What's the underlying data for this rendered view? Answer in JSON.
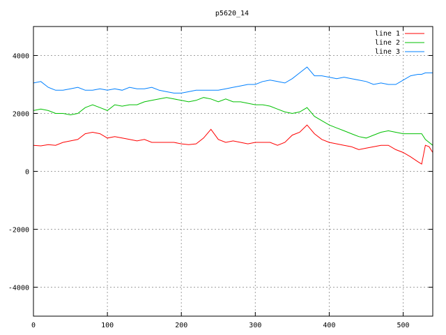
{
  "chart_data": {
    "type": "line",
    "title": "p5620_14",
    "xlabel": "",
    "ylabel": "",
    "xlim": [
      0,
      540
    ],
    "ylim": [
      -5000,
      5000
    ],
    "x_ticks": [
      0,
      100,
      200,
      300,
      400,
      500
    ],
    "y_ticks": [
      -4000,
      -2000,
      0,
      2000,
      4000
    ],
    "grid": true,
    "legend_position": "top-right",
    "x": [
      0,
      10,
      20,
      30,
      40,
      50,
      60,
      70,
      80,
      90,
      100,
      110,
      120,
      130,
      140,
      150,
      160,
      170,
      180,
      190,
      200,
      210,
      220,
      230,
      240,
      250,
      260,
      270,
      280,
      290,
      300,
      310,
      320,
      330,
      340,
      350,
      360,
      370,
      380,
      390,
      400,
      410,
      420,
      430,
      440,
      450,
      460,
      470,
      480,
      490,
      500,
      510,
      520,
      525,
      530,
      535,
      540
    ],
    "series": [
      {
        "name": "line 1",
        "color": "#ff0000",
        "values": [
          900,
          880,
          920,
          900,
          1000,
          1050,
          1100,
          1300,
          1350,
          1300,
          1150,
          1200,
          1150,
          1100,
          1050,
          1100,
          1000,
          1000,
          1000,
          1000,
          950,
          920,
          950,
          1150,
          1450,
          1100,
          1000,
          1050,
          1000,
          950,
          1000,
          1000,
          1000,
          900,
          1000,
          1250,
          1350,
          1600,
          1300,
          1100,
          1000,
          950,
          900,
          850,
          750,
          800,
          850,
          900,
          900,
          750,
          650,
          500,
          330,
          250,
          900,
          850,
          650
        ]
      },
      {
        "name": "line 2",
        "color": "#00c000",
        "values": [
          2100,
          2150,
          2100,
          2000,
          2000,
          1950,
          2000,
          2200,
          2300,
          2200,
          2100,
          2300,
          2250,
          2300,
          2300,
          2400,
          2450,
          2500,
          2550,
          2500,
          2450,
          2400,
          2450,
          2550,
          2500,
          2400,
          2500,
          2400,
          2400,
          2350,
          2300,
          2300,
          2250,
          2150,
          2050,
          2000,
          2050,
          2200,
          1900,
          1750,
          1600,
          1500,
          1400,
          1300,
          1200,
          1150,
          1250,
          1350,
          1400,
          1350,
          1300,
          1300,
          1300,
          1300,
          1100,
          1000,
          900
        ]
      },
      {
        "name": "line 3",
        "color": "#0080ff",
        "values": [
          3050,
          3100,
          2900,
          2800,
          2800,
          2850,
          2900,
          2800,
          2800,
          2850,
          2800,
          2850,
          2800,
          2900,
          2850,
          2850,
          2900,
          2800,
          2750,
          2700,
          2700,
          2750,
          2800,
          2800,
          2800,
          2800,
          2850,
          2900,
          2950,
          3000,
          3000,
          3100,
          3150,
          3100,
          3050,
          3200,
          3400,
          3600,
          3300,
          3300,
          3250,
          3200,
          3250,
          3200,
          3150,
          3100,
          3000,
          3050,
          3000,
          3000,
          3150,
          3300,
          3350,
          3350,
          3400,
          3400,
          3400
        ]
      }
    ]
  }
}
